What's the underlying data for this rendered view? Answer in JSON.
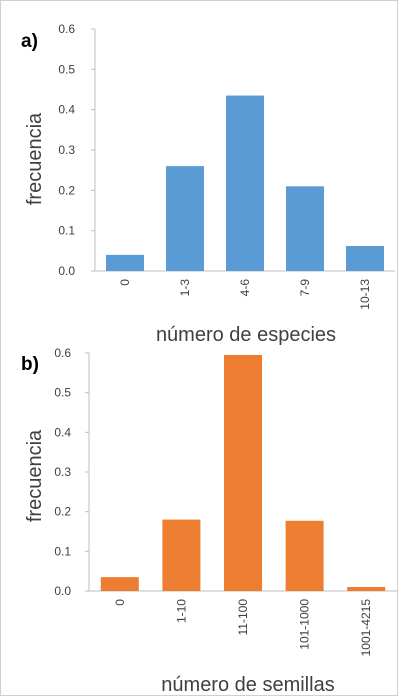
{
  "chart_data": [
    {
      "type": "bar",
      "panel_label": "a)",
      "categories": [
        "0",
        "1-3",
        "4-6",
        "7-9",
        "10-13"
      ],
      "values": [
        0.04,
        0.26,
        0.435,
        0.21,
        0.062
      ],
      "xlabel": "número de especies",
      "ylabel": "frecuencia",
      "ylim": [
        0,
        0.6
      ],
      "yticks": [
        "0.0",
        "0.1",
        "0.2",
        "0.3",
        "0.4",
        "0.5",
        "0.6"
      ],
      "bar_color": "#5b9bd5",
      "grid": false
    },
    {
      "type": "bar",
      "panel_label": "b)",
      "categories": [
        "0",
        "1-10",
        "11-100",
        "101-1000",
        "1001-4215"
      ],
      "values": [
        0.035,
        0.18,
        0.595,
        0.177,
        0.01
      ],
      "xlabel": "número de semillas",
      "ylabel": "frecuencia",
      "ylim": [
        0,
        0.6
      ],
      "yticks": [
        "0.0",
        "0.1",
        "0.2",
        "0.3",
        "0.4",
        "0.5",
        "0.6"
      ],
      "bar_color": "#ed7d31",
      "grid": false
    }
  ]
}
